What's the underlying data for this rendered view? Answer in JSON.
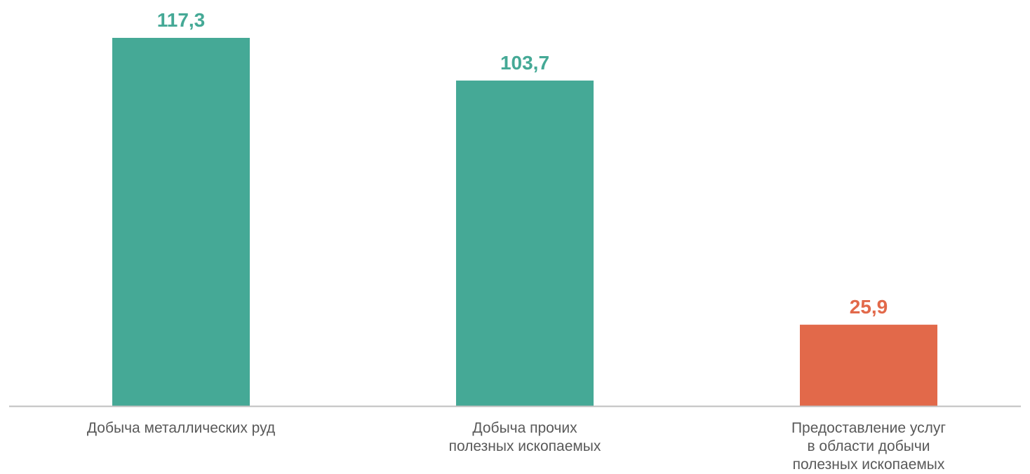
{
  "chart_data": {
    "type": "bar",
    "categories": [
      [
        "Добыча металлических руд"
      ],
      [
        "Добыча прочих",
        "полезных ископаемых"
      ],
      [
        "Предоставление услуг",
        "в области добычи",
        "полезных ископаемых"
      ]
    ],
    "values": [
      117.3,
      103.7,
      25.9
    ],
    "value_labels": [
      "117,3",
      "103,7",
      "25,9"
    ],
    "colors": [
      "#45a996",
      "#45a996",
      "#e2694a"
    ],
    "ylim": [
      0,
      117.3
    ],
    "grid": false,
    "legend": "none",
    "axis_color": "#bfbfbf"
  }
}
